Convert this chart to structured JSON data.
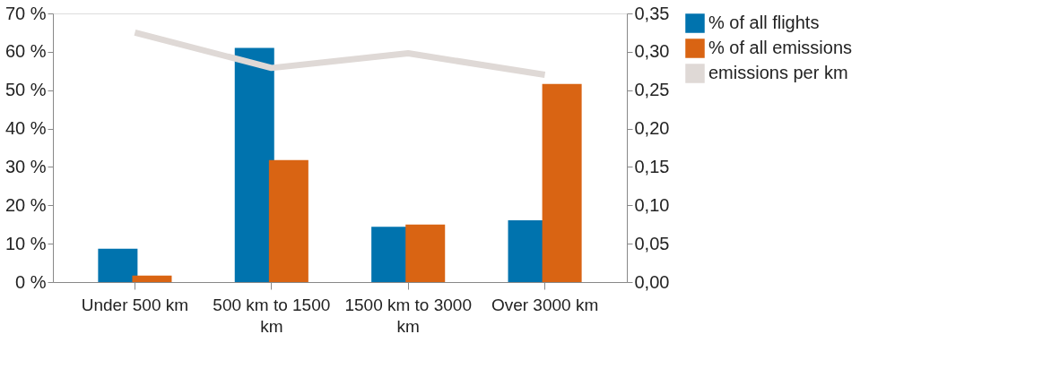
{
  "chart_data": {
    "type": "bar",
    "categories": [
      "Under 500 km",
      "500 km to 1500 km",
      "1500 km to 3000 km",
      "Over 3000 km"
    ],
    "series": [
      {
        "name": "% of all flights",
        "color": "#0073ae",
        "values": [
          8.7,
          61.0,
          14.4,
          16.1
        ]
      },
      {
        "name": "% of all emissions",
        "color": "#d96413",
        "values": [
          1.7,
          31.8,
          15.0,
          51.6
        ]
      },
      {
        "name": "emissions per km",
        "color": "#dfd9d6",
        "type": "line",
        "axis": "y2",
        "values": [
          0.325,
          0.279,
          0.298,
          0.27
        ]
      }
    ],
    "ylim": [
      0,
      70
    ],
    "yticks": [
      {
        "value": 0,
        "label": "0 %"
      },
      {
        "value": 10,
        "label": "10 %"
      },
      {
        "value": 20,
        "label": "20 %"
      },
      {
        "value": 30,
        "label": "30 %"
      },
      {
        "value": 40,
        "label": "40 %"
      },
      {
        "value": 50,
        "label": "50 %"
      },
      {
        "value": 60,
        "label": "60 %"
      },
      {
        "value": 70,
        "label": "70 %"
      }
    ],
    "y2lim": [
      0,
      0.35
    ],
    "y2ticks": [
      {
        "value": 0,
        "label": "0,00"
      },
      {
        "value": 0.05,
        "label": "0,05"
      },
      {
        "value": 0.1,
        "label": "0,10"
      },
      {
        "value": 0.15,
        "label": "0,15"
      },
      {
        "value": 0.2,
        "label": "0,20"
      },
      {
        "value": 0.25,
        "label": "0,25"
      },
      {
        "value": 0.3,
        "label": "0,30"
      },
      {
        "value": 0.35,
        "label": "0,35"
      }
    ],
    "grid": false,
    "legend": "right"
  }
}
